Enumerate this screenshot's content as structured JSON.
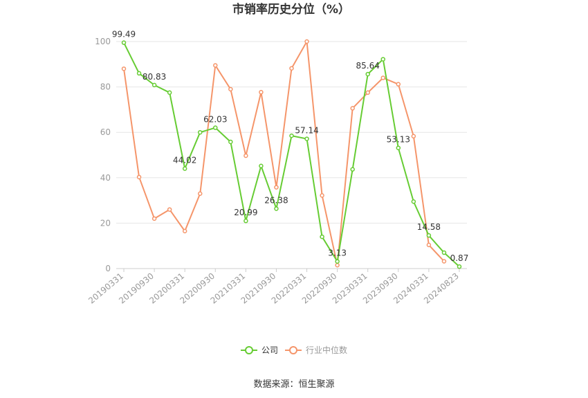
{
  "chart_data": {
    "type": "line",
    "title": "市销率历史分位（%）",
    "x": [
      "20190331",
      "20190630",
      "20190930",
      "20191231",
      "20200331",
      "20200630",
      "20200930",
      "20201231",
      "20210331",
      "20210630",
      "20210930",
      "20211231",
      "20220331",
      "20220630",
      "20220930",
      "20221231",
      "20230331",
      "20230630",
      "20230930",
      "20231231",
      "20240331",
      "20240630",
      "20240823"
    ],
    "x_tick_labels": [
      "20190331",
      "20190930",
      "20200331",
      "20200930",
      "20210331",
      "20210930",
      "20220331",
      "20220930",
      "20230331",
      "20230930",
      "20240331",
      "20240823"
    ],
    "ylim": [
      0,
      100
    ],
    "y_ticks": [
      0,
      20,
      40,
      60,
      80,
      100
    ],
    "grid": true,
    "legend_position": "bottom",
    "series": [
      {
        "name": "公司",
        "color": "#66cc33",
        "values": [
          99.49,
          86,
          80.83,
          77.5,
          44.02,
          60,
          62.03,
          55.8,
          20.99,
          45.2,
          26.38,
          58.5,
          57.14,
          14,
          3.13,
          43.7,
          85.64,
          92.2,
          53.13,
          29.5,
          14.58,
          7,
          0.87
        ],
        "data_labels": [
          {
            "index": 0,
            "text": "99.49"
          },
          {
            "index": 2,
            "text": "80.83"
          },
          {
            "index": 4,
            "text": "44.02"
          },
          {
            "index": 6,
            "text": "62.03"
          },
          {
            "index": 8,
            "text": "20.99"
          },
          {
            "index": 10,
            "text": "26.38"
          },
          {
            "index": 12,
            "text": "57.14"
          },
          {
            "index": 14,
            "text": "3.13"
          },
          {
            "index": 16,
            "text": "85.64"
          },
          {
            "index": 18,
            "text": "53.13"
          },
          {
            "index": 20,
            "text": "14.58"
          },
          {
            "index": 22,
            "text": "0.87"
          }
        ]
      },
      {
        "name": "行业中位数",
        "color": "#f5956a",
        "values": [
          88,
          40.3,
          22,
          26,
          16.5,
          33,
          89.5,
          79,
          49.7,
          77.7,
          35.8,
          88.2,
          100,
          32.2,
          1.5,
          70.6,
          77.5,
          84,
          81.2,
          58.3,
          10.4,
          3.2,
          null
        ]
      }
    ]
  },
  "source": "数据来源：恒生聚源"
}
